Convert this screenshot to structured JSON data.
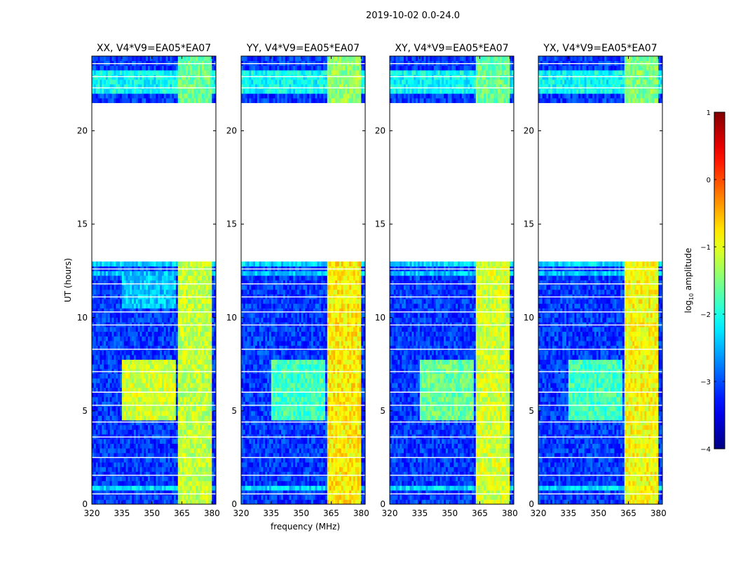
{
  "figure_title": "2019-10-02 0.0-24.0",
  "colorbar": {
    "label_prefix": "log",
    "label_sub": "10",
    "label_suffix": " amplitude",
    "ticks": [
      {
        "v": 1,
        "t": "1"
      },
      {
        "v": 0,
        "t": "0"
      },
      {
        "v": -1,
        "t": "−1"
      },
      {
        "v": -2,
        "t": "−2"
      },
      {
        "v": -3,
        "t": "−3"
      },
      {
        "v": -4,
        "t": "−4"
      }
    ],
    "range": [
      -4,
      1
    ],
    "colormap": "jet"
  },
  "chart_data": [
    {
      "type": "heatmap",
      "title": "XX, V4*V9=EA05*EA07",
      "xlabel": "",
      "ylabel": "UT (hours)",
      "xlim": [
        320,
        382
      ],
      "ylim": [
        0,
        24
      ],
      "x_ticks": [
        320,
        335,
        350,
        365,
        380
      ],
      "y_ticks": [
        0,
        5,
        10,
        15,
        20
      ],
      "z_units": "log10 amplitude",
      "data_rows_hours": [
        [
          0.0,
          13.1
        ],
        [
          21.4,
          24.0
        ]
      ],
      "gap_hours": [
        13.1,
        21.4
      ],
      "background_level": -3.1,
      "regions": [
        {
          "x": [
            320,
            382
          ],
          "y": [
            0.8,
            1.0
          ],
          "z": -2.3
        },
        {
          "x": [
            320,
            382
          ],
          "y": [
            12.2,
            12.5
          ],
          "z": -2.4
        },
        {
          "x": [
            320,
            382
          ],
          "y": [
            12.7,
            13.1
          ],
          "z": -2.3
        },
        {
          "x": [
            320,
            382
          ],
          "y": [
            22.0,
            23.2
          ],
          "z": -2.1
        },
        {
          "x": [
            335,
            362
          ],
          "y": [
            4.5,
            7.8
          ],
          "z": -1.1
        },
        {
          "x": [
            335,
            362
          ],
          "y": [
            10.5,
            12.2
          ],
          "z": -2.4
        },
        {
          "x": [
            363,
            380
          ],
          "y": [
            0,
            13.1
          ],
          "z": -1.2
        },
        {
          "x": [
            363,
            380
          ],
          "y": [
            21.4,
            24.0
          ],
          "z": -1.6
        }
      ]
    },
    {
      "type": "heatmap",
      "title": "YY, V4*V9=EA05*EA07",
      "xlabel": "frequency (MHz)",
      "ylabel": "",
      "xlim": [
        320,
        382
      ],
      "ylim": [
        0,
        24
      ],
      "x_ticks": [
        320,
        335,
        350,
        365,
        380
      ],
      "y_ticks": [
        0,
        5,
        10,
        15,
        20
      ],
      "z_units": "log10 amplitude",
      "data_rows_hours": [
        [
          0.0,
          13.1
        ],
        [
          21.4,
          24.0
        ]
      ],
      "gap_hours": [
        13.1,
        21.4
      ],
      "background_level": -3.1,
      "regions": [
        {
          "x": [
            320,
            382
          ],
          "y": [
            0.8,
            1.0
          ],
          "z": -2.3
        },
        {
          "x": [
            320,
            382
          ],
          "y": [
            12.2,
            12.5
          ],
          "z": -2.4
        },
        {
          "x": [
            320,
            382
          ],
          "y": [
            12.7,
            13.1
          ],
          "z": -2.3
        },
        {
          "x": [
            320,
            382
          ],
          "y": [
            22.0,
            23.2
          ],
          "z": -2.1
        },
        {
          "x": [
            335,
            362
          ],
          "y": [
            4.5,
            7.8
          ],
          "z": -1.8
        },
        {
          "x": [
            363,
            380
          ],
          "y": [
            0,
            13.1
          ],
          "z": -0.8
        },
        {
          "x": [
            363,
            380
          ],
          "y": [
            21.4,
            24.0
          ],
          "z": -1.4
        }
      ]
    },
    {
      "type": "heatmap",
      "title": "XY, V4*V9=EA05*EA07",
      "xlabel": "",
      "ylabel": "",
      "xlim": [
        320,
        382
      ],
      "ylim": [
        0,
        24
      ],
      "x_ticks": [
        320,
        335,
        350,
        365,
        380
      ],
      "y_ticks": [
        0,
        5,
        10,
        15,
        20
      ],
      "z_units": "log10 amplitude",
      "data_rows_hours": [
        [
          0.0,
          13.1
        ],
        [
          21.4,
          24.0
        ]
      ],
      "gap_hours": [
        13.1,
        21.4
      ],
      "background_level": -3.1,
      "regions": [
        {
          "x": [
            320,
            382
          ],
          "y": [
            0.8,
            1.0
          ],
          "z": -2.3
        },
        {
          "x": [
            320,
            382
          ],
          "y": [
            12.2,
            12.5
          ],
          "z": -2.4
        },
        {
          "x": [
            320,
            382
          ],
          "y": [
            12.7,
            13.1
          ],
          "z": -2.3
        },
        {
          "x": [
            320,
            382
          ],
          "y": [
            22.0,
            23.2
          ],
          "z": -2.1
        },
        {
          "x": [
            335,
            362
          ],
          "y": [
            4.5,
            7.8
          ],
          "z": -1.6
        },
        {
          "x": [
            363,
            380
          ],
          "y": [
            0,
            13.1
          ],
          "z": -1.1
        },
        {
          "x": [
            363,
            380
          ],
          "y": [
            21.4,
            24.0
          ],
          "z": -1.6
        }
      ]
    },
    {
      "type": "heatmap",
      "title": "YX, V4*V9=EA05*EA07",
      "xlabel": "",
      "ylabel": "",
      "xlim": [
        320,
        382
      ],
      "ylim": [
        0,
        24
      ],
      "x_ticks": [
        320,
        335,
        350,
        365,
        380
      ],
      "y_ticks": [
        0,
        5,
        10,
        15,
        20
      ],
      "z_units": "log10 amplitude",
      "data_rows_hours": [
        [
          0.0,
          13.1
        ],
        [
          21.4,
          24.0
        ]
      ],
      "gap_hours": [
        13.1,
        21.4
      ],
      "background_level": -3.1,
      "regions": [
        {
          "x": [
            320,
            382
          ],
          "y": [
            0.8,
            1.0
          ],
          "z": -2.3
        },
        {
          "x": [
            320,
            382
          ],
          "y": [
            12.2,
            12.5
          ],
          "z": -2.4
        },
        {
          "x": [
            320,
            382
          ],
          "y": [
            12.7,
            13.1
          ],
          "z": -2.3
        },
        {
          "x": [
            320,
            382
          ],
          "y": [
            22.0,
            23.2
          ],
          "z": -2.1
        },
        {
          "x": [
            335,
            362
          ],
          "y": [
            4.5,
            7.8
          ],
          "z": -1.8
        },
        {
          "x": [
            363,
            380
          ],
          "y": [
            0,
            13.1
          ],
          "z": -0.9
        },
        {
          "x": [
            363,
            380
          ],
          "y": [
            21.4,
            24.0
          ],
          "z": -1.5
        }
      ]
    }
  ]
}
